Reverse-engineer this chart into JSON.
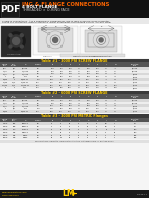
{
  "title_line1": "ING & FLANGE CONNECTIONS",
  "title_line2": "4 BOLT FLANGE",
  "subtitle": "THREADED × O-RING FACE",
  "pdf_label": "PDF",
  "header_bg": "#111111",
  "header_orange": "#ff6600",
  "body_bg": "#f5f5f5",
  "white": "#ffffff",
  "table1_title": "Table #1 - 3000 PSI SCREW FLANGE",
  "table2_title": "Table #2 - 6000 PSI SCREW FLANGE",
  "table3_title": "Table #3 - 3000 PSI METRIC Flanges",
  "table_hdr_bg": "#3a3a3a",
  "table_hdr_text": "#ffcc00",
  "col_hdr_bg": "#555555",
  "col_hdr_text": "#ffffff",
  "row_alt": "#d8d8d8",
  "row_even": "#eeeeee",
  "footer_bg": "#1a1a1a",
  "footer_yellow": "#ffcc00",
  "gray_border": "#999999",
  "fig_width": 1.49,
  "fig_height": 1.98,
  "dpi": 100
}
